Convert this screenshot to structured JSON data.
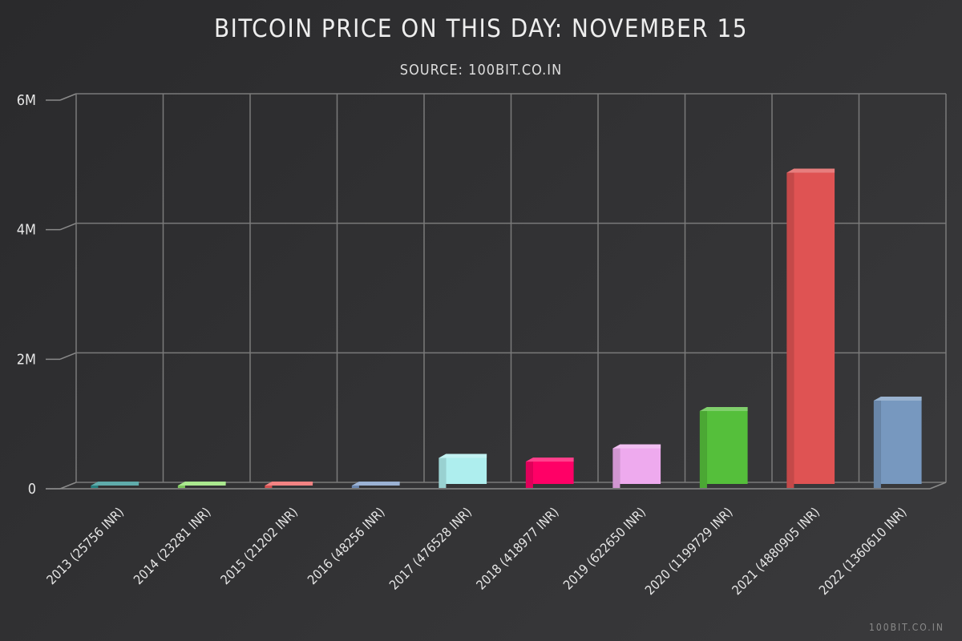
{
  "chart_data": {
    "type": "bar",
    "title": "BITCOIN PRICE ON THIS DAY: NOVEMBER 15",
    "subtitle": "SOURCE: 100BIT.CO.IN",
    "categories": [
      "2013 (25756 INR)",
      "2014 (23281 INR)",
      "2015 (21202 INR)",
      "2016 (48256 INR)",
      "2017 (476528 INR)",
      "2018 (418977 INR)",
      "2019 (622650 INR)",
      "2020 (1199729 INR)",
      "2021 (4880905 INR)",
      "2022 (1360610 INR)"
    ],
    "values": [
      25756,
      23281,
      21202,
      48256,
      476528,
      418977,
      622650,
      1199729,
      4880905,
      1360610
    ],
    "colors": [
      "#2a8f8f",
      "#8ee06a",
      "#ee5a5a",
      "#7a98c6",
      "#aeeeee",
      "#ff0066",
      "#eeaaee",
      "#55bf3b",
      "#df5353",
      "#7798bf"
    ],
    "ylim": [
      0,
      6000000
    ],
    "yticks": [
      0,
      2000000,
      4000000,
      6000000
    ],
    "ytick_labels": [
      "0",
      "2M",
      "4M",
      "6M"
    ],
    "xlabel": "",
    "ylabel": "",
    "grid": true,
    "legend": "none"
  },
  "watermark": "100BIT.CO.IN"
}
